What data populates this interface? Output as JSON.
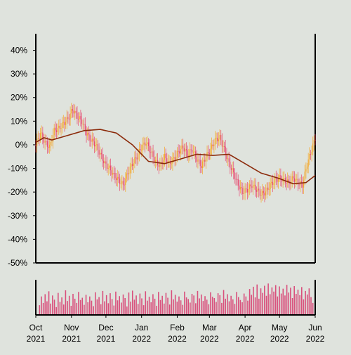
{
  "chart_data": {
    "type": "line",
    "title": "",
    "xlabel": "",
    "ylabel": "",
    "background_color": "#dfe3dd",
    "grid": false,
    "y_axis": {
      "range": [
        -50,
        47
      ],
      "ticks": [
        40,
        30,
        20,
        10,
        0,
        -10,
        -20,
        -30,
        -40,
        -50
      ],
      "tick_labels": [
        "40%",
        "30%",
        "20%",
        "10%",
        "0%",
        "-10%",
        "-20%",
        "-30%",
        "-40%",
        "-50%"
      ]
    },
    "x_axis": {
      "range": [
        "2021-10-01",
        "2022-06-01"
      ],
      "ticks": [
        "2021-10-01",
        "2021-11-01",
        "2021-12-01",
        "2022-01-01",
        "2022-02-01",
        "2022-03-01",
        "2022-04-01",
        "2022-05-01",
        "2022-06-01"
      ],
      "tick_labels": [
        [
          "Oct",
          "2021"
        ],
        [
          "Nov",
          "2021"
        ],
        [
          "Dec",
          "2021"
        ],
        [
          "Jan",
          "2022"
        ],
        [
          "Feb",
          "2022"
        ],
        [
          "Mar",
          "2022"
        ],
        [
          "Apr",
          "2022"
        ],
        [
          "May",
          "2022"
        ],
        [
          "Jun",
          "2022"
        ]
      ]
    },
    "colors": {
      "candle_up": "#f5a623",
      "candle_down": "#e8456b",
      "moving_average": "#8b2a0a",
      "volume": "#d94f7c"
    },
    "price_series": [
      {
        "x": "2021-10-01",
        "y": 0
      },
      {
        "x": "2021-10-05",
        "y": 5
      },
      {
        "x": "2021-10-09",
        "y": 1
      },
      {
        "x": "2021-10-13",
        "y": -1
      },
      {
        "x": "2021-10-17",
        "y": 6
      },
      {
        "x": "2021-10-21",
        "y": 7
      },
      {
        "x": "2021-10-25",
        "y": 9
      },
      {
        "x": "2021-10-29",
        "y": 11
      },
      {
        "x": "2021-11-02",
        "y": 15
      },
      {
        "x": "2021-11-06",
        "y": 12
      },
      {
        "x": "2021-11-10",
        "y": 10
      },
      {
        "x": "2021-11-14",
        "y": 5
      },
      {
        "x": "2021-11-18",
        "y": 2
      },
      {
        "x": "2021-11-22",
        "y": 0
      },
      {
        "x": "2021-11-26",
        "y": -4
      },
      {
        "x": "2021-11-30",
        "y": -8
      },
      {
        "x": "2021-12-04",
        "y": -10
      },
      {
        "x": "2021-12-08",
        "y": -13
      },
      {
        "x": "2021-12-12",
        "y": -15
      },
      {
        "x": "2021-12-16",
        "y": -17
      },
      {
        "x": "2021-12-20",
        "y": -12
      },
      {
        "x": "2021-12-24",
        "y": -8
      },
      {
        "x": "2021-12-28",
        "y": -5
      },
      {
        "x": "2022-01-01",
        "y": -1
      },
      {
        "x": "2022-01-05",
        "y": 1
      },
      {
        "x": "2022-01-09",
        "y": -3
      },
      {
        "x": "2022-01-13",
        "y": -7
      },
      {
        "x": "2022-01-17",
        "y": -9
      },
      {
        "x": "2022-01-21",
        "y": -5
      },
      {
        "x": "2022-01-25",
        "y": -8
      },
      {
        "x": "2022-01-29",
        "y": -6
      },
      {
        "x": "2022-02-02",
        "y": -3
      },
      {
        "x": "2022-02-06",
        "y": -1
      },
      {
        "x": "2022-02-10",
        "y": -4
      },
      {
        "x": "2022-02-14",
        "y": -2
      },
      {
        "x": "2022-02-18",
        "y": -6
      },
      {
        "x": "2022-02-22",
        "y": -9
      },
      {
        "x": "2022-02-26",
        "y": -5
      },
      {
        "x": "2022-03-02",
        "y": -2
      },
      {
        "x": "2022-03-06",
        "y": 2
      },
      {
        "x": "2022-03-10",
        "y": 3
      },
      {
        "x": "2022-03-14",
        "y": -2
      },
      {
        "x": "2022-03-18",
        "y": -8
      },
      {
        "x": "2022-03-22",
        "y": -12
      },
      {
        "x": "2022-03-26",
        "y": -17
      },
      {
        "x": "2022-03-30",
        "y": -20
      },
      {
        "x": "2022-04-03",
        "y": -19
      },
      {
        "x": "2022-04-07",
        "y": -17
      },
      {
        "x": "2022-04-11",
        "y": -19
      },
      {
        "x": "2022-04-15",
        "y": -21
      },
      {
        "x": "2022-04-19",
        "y": -20
      },
      {
        "x": "2022-04-23",
        "y": -17
      },
      {
        "x": "2022-04-27",
        "y": -15
      },
      {
        "x": "2022-05-01",
        "y": -14
      },
      {
        "x": "2022-05-05",
        "y": -15
      },
      {
        "x": "2022-05-09",
        "y": -16
      },
      {
        "x": "2022-05-13",
        "y": -14
      },
      {
        "x": "2022-05-17",
        "y": -16
      },
      {
        "x": "2022-05-21",
        "y": -17
      },
      {
        "x": "2022-05-25",
        "y": -8
      },
      {
        "x": "2022-05-29",
        "y": -2
      },
      {
        "x": "2022-06-01",
        "y": 3
      }
    ],
    "moving_average": [
      {
        "x": "2021-10-01",
        "y": 1
      },
      {
        "x": "2021-10-08",
        "y": 3
      },
      {
        "x": "2021-10-15",
        "y": 2
      },
      {
        "x": "2021-10-29",
        "y": 4
      },
      {
        "x": "2021-11-12",
        "y": 6
      },
      {
        "x": "2021-11-26",
        "y": 6.5
      },
      {
        "x": "2021-12-10",
        "y": 5
      },
      {
        "x": "2021-12-24",
        "y": 0
      },
      {
        "x": "2022-01-07",
        "y": -7
      },
      {
        "x": "2022-01-21",
        "y": -8
      },
      {
        "x": "2022-02-04",
        "y": -6
      },
      {
        "x": "2022-02-18",
        "y": -4
      },
      {
        "x": "2022-03-04",
        "y": -4.5
      },
      {
        "x": "2022-03-18",
        "y": -4
      },
      {
        "x": "2022-04-01",
        "y": -8
      },
      {
        "x": "2022-04-15",
        "y": -12
      },
      {
        "x": "2022-04-29",
        "y": -14
      },
      {
        "x": "2022-05-13",
        "y": -16.5
      },
      {
        "x": "2022-05-24",
        "y": -16
      },
      {
        "x": "2022-06-01",
        "y": -13
      }
    ],
    "volume": {
      "range": [
        0,
        1
      ],
      "values": [
        0.28,
        0.55,
        0.35,
        0.62,
        0.4,
        0.71,
        0.33,
        0.58,
        0.45,
        0.22,
        0.66,
        0.38,
        0.52,
        0.3,
        0.74,
        0.41,
        0.57,
        0.26,
        0.63,
        0.48,
        0.35,
        0.69,
        0.44,
        0.51,
        0.29,
        0.6,
        0.37,
        0.55,
        0.42,
        0.25,
        0.68,
        0.46,
        0.53,
        0.31,
        0.72,
        0.4,
        0.59,
        0.34,
        0.65,
        0.47,
        0.27,
        0.7,
        0.43,
        0.56,
        0.36,
        0.61,
        0.5,
        0.24,
        0.67,
        0.39,
        0.73,
        0.45,
        0.58,
        0.32,
        0.64,
        0.49,
        0.28,
        0.71,
        0.42,
        0.54,
        0.37,
        0.62,
        0.48,
        0.26,
        0.69,
        0.44,
        0.57,
        0.33,
        0.66,
        0.51,
        0.3,
        0.74,
        0.46,
        0.6,
        0.39,
        0.55,
        0.43,
        0.29,
        0.7,
        0.52,
        0.47,
        0.36,
        0.63,
        0.58,
        0.34,
        0.72,
        0.49,
        0.61,
        0.41,
        0.56,
        0.45,
        0.31,
        0.68,
        0.54,
        0.5,
        0.38,
        0.65,
        0.59,
        0.35,
        0.75,
        0.48,
        0.62,
        0.4,
        0.57,
        0.46,
        0.32,
        0.69,
        0.53,
        0.44,
        0.37,
        0.64,
        0.55,
        0.42,
        0.78,
        0.6,
        0.85,
        0.52,
        0.92,
        0.48,
        0.8,
        0.66,
        0.88,
        0.57,
        0.95,
        0.62,
        0.83,
        0.7,
        0.9,
        0.55,
        0.86,
        0.64,
        0.79,
        0.58,
        0.91,
        0.67,
        0.82,
        0.5,
        0.87,
        0.63,
        0.76,
        0.59,
        0.84,
        0.46,
        0.72,
        0.61,
        0.8,
        0.53,
        0.35
      ]
    }
  }
}
